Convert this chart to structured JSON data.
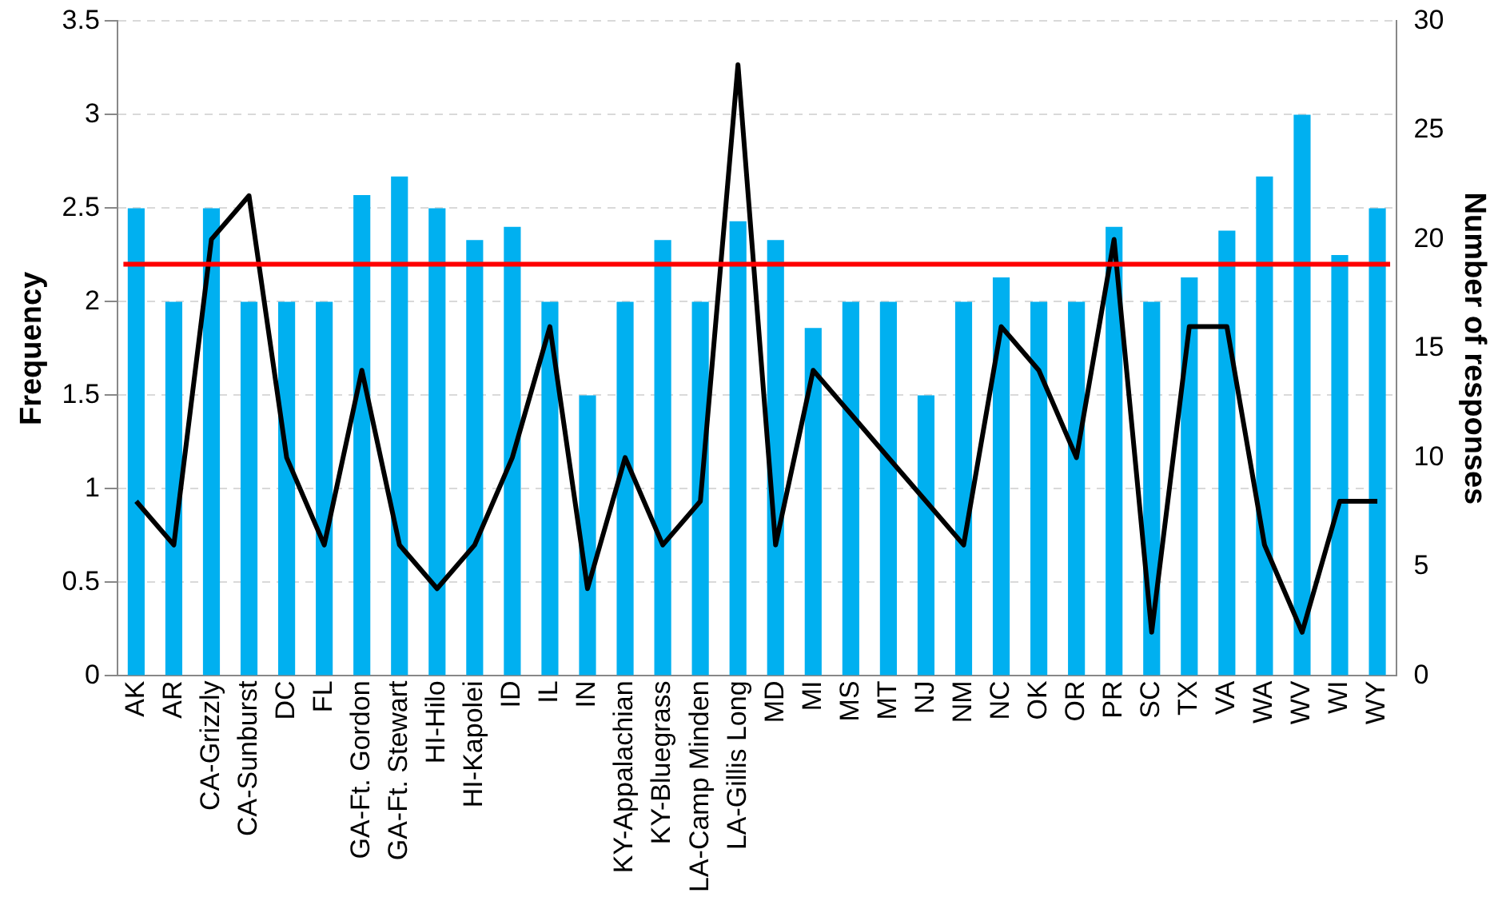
{
  "chart_data": {
    "type": "bar",
    "ylabel": "Frequency",
    "y2label": "Number of responses",
    "categories": [
      "AK",
      "AR",
      "CA-Grizzly",
      "CA-Sunburst",
      "DC",
      "FL",
      "GA-Ft. Gordon",
      "GA-Ft. Stewart",
      "HI-Hilo",
      "HI-Kapolei",
      "ID",
      "IL",
      "IN",
      "KY-Appalachian",
      "KY-Bluegrass",
      "LA-Camp Minden",
      "LA-Gillis Long",
      "MD",
      "MI",
      "MS",
      "MT",
      "NJ",
      "NM",
      "NC",
      "OK",
      "OR",
      "PR",
      "SC",
      "TX",
      "VA",
      "WA",
      "WV",
      "WI",
      "WY"
    ],
    "series": [
      {
        "color": "#00b0f0",
        "values": [
          2.5,
          2,
          2.5,
          2,
          2,
          2,
          2.57,
          2.67,
          2.5,
          2.33,
          2.4,
          2,
          1.5,
          2,
          2.33,
          2,
          2.43,
          2.33,
          1.86,
          2,
          2,
          1.5,
          2,
          2.13,
          2,
          2,
          2.4,
          2,
          2.13,
          2.38,
          2.67,
          3,
          2.25,
          2.5
        ]
      },
      {
        "type": "line",
        "color": "#000000",
        "axis": "y2",
        "values": [
          8,
          6,
          20,
          22,
          10,
          6,
          14,
          6,
          4,
          6,
          10,
          16,
          4,
          10,
          6,
          8,
          28,
          6,
          14,
          12,
          10,
          8,
          6,
          16,
          14,
          10,
          20,
          2,
          16,
          16,
          6,
          2,
          8,
          8
        ]
      }
    ],
    "ylim": [
      0,
      3.5
    ],
    "yticks": [
      0,
      0.5,
      1,
      1.5,
      2,
      2.5,
      3,
      3.5
    ],
    "y2lim": [
      0,
      30
    ],
    "y2ticks": [
      0,
      5,
      10,
      15,
      20,
      25,
      30
    ],
    "ref_lines": [
      {
        "axis": "y",
        "value": 2.2,
        "color": "#ff0000"
      }
    ],
    "grid": "y",
    "legend": false,
    "marker": "none",
    "line_style": "solid"
  }
}
